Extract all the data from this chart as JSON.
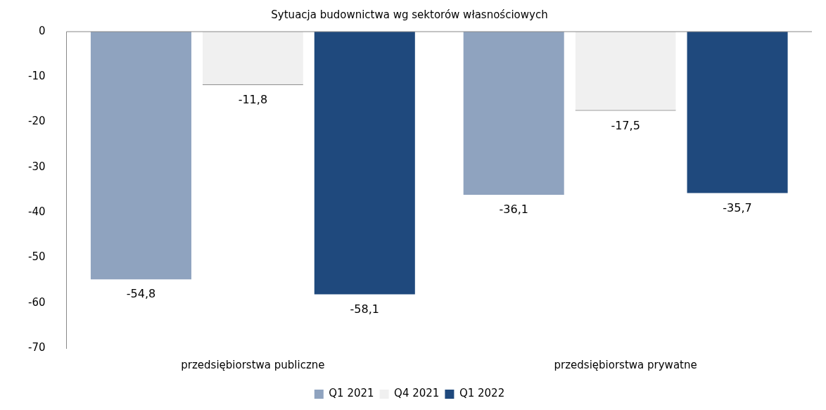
{
  "chart_data": {
    "type": "bar",
    "title": "Sytuacja budownictwa wg sektorów własnościowych",
    "categories": [
      "przedsiębiorstwa publiczne",
      "przedsiębiorstwa prywatne"
    ],
    "series": [
      {
        "name": "Q1 2021",
        "color": "#8fa3bf",
        "values": [
          -54.8,
          -36.1
        ],
        "value_labels": [
          "-54,8",
          "-36,1"
        ]
      },
      {
        "name": "Q4 2021",
        "color": "#f0f0f0",
        "values": [
          -11.8,
          -17.5
        ],
        "value_labels": [
          "-11,8",
          "-17,5"
        ]
      },
      {
        "name": "Q1 2022",
        "color": "#1f497d",
        "values": [
          -58.1,
          -35.7
        ],
        "value_labels": [
          "-58,1",
          "-35,7"
        ]
      }
    ],
    "ylim": [
      -70,
      0
    ],
    "yticks": [
      -70,
      -60,
      -50,
      -40,
      -30,
      -20,
      -10,
      0
    ],
    "grid": false,
    "legend": "bottom"
  }
}
